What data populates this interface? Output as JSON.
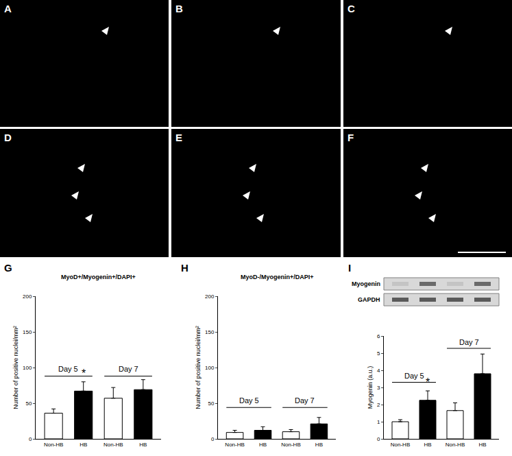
{
  "images": [
    {
      "panel": "A"
    },
    {
      "panel": "B"
    },
    {
      "panel": "C"
    },
    {
      "panel": "D"
    },
    {
      "panel": "E"
    },
    {
      "panel": "F"
    }
  ],
  "chart_data": [
    {
      "type": "bar",
      "panel": "G",
      "title": "MyoD+/Myogenin+/DAPI+",
      "y_label": "Number of positive nuclei/mm²",
      "categories": [
        "Non-HB",
        "HB",
        "Non-HB",
        "HB"
      ],
      "values": [
        36,
        67,
        57,
        69
      ],
      "errors": [
        6,
        13,
        15,
        14
      ],
      "colors": [
        "#ffffff",
        "#000000",
        "#ffffff",
        "#000000"
      ],
      "ylim": [
        0,
        200
      ],
      "yticks": [
        0,
        50,
        100,
        150,
        200
      ],
      "grid": false,
      "groups": [
        {
          "label": "Day 5",
          "span": [
            0,
            1
          ]
        },
        {
          "label": "Day 7",
          "span": [
            2,
            3
          ]
        }
      ],
      "annotations": [
        {
          "text": "*",
          "at": 1
        }
      ]
    },
    {
      "type": "bar",
      "panel": "H",
      "title": "MyoD-/Myogenin+/DAPI+",
      "y_label": "Number of positive nuclei/mm²",
      "categories": [
        "Non-HB",
        "HB",
        "Non-HB",
        "HB"
      ],
      "values": [
        9,
        12,
        10,
        21
      ],
      "errors": [
        3,
        5,
        3,
        9
      ],
      "colors": [
        "#ffffff",
        "#000000",
        "#ffffff",
        "#000000"
      ],
      "ylim": [
        0,
        200
      ],
      "yticks": [
        0,
        50,
        100,
        150,
        200
      ],
      "grid": false,
      "groups": [
        {
          "label": "Day 5",
          "span": [
            0,
            1
          ]
        },
        {
          "label": "Day 7",
          "span": [
            2,
            3
          ]
        }
      ]
    },
    {
      "type": "bar",
      "panel": "I",
      "y_label": "Myogenin (a.u.)",
      "blot": [
        "Myogenin",
        "GAPDH"
      ],
      "categories": [
        "Non-HB",
        "HB",
        "Non-HB",
        "HB"
      ],
      "values": [
        1.0,
        2.25,
        1.65,
        3.8
      ],
      "errors": [
        0.12,
        0.55,
        0.45,
        1.15
      ],
      "colors": [
        "#ffffff",
        "#000000",
        "#ffffff",
        "#000000"
      ],
      "ylim": [
        0,
        6
      ],
      "yticks": [
        0,
        1,
        2,
        3,
        4,
        5,
        6
      ],
      "grid": false,
      "groups": [
        {
          "label": "Day 5",
          "span": [
            0,
            1
          ]
        },
        {
          "label": "Day 7",
          "span": [
            2,
            3
          ]
        }
      ],
      "annotations": [
        {
          "text": "*",
          "at": 1
        }
      ]
    }
  ]
}
